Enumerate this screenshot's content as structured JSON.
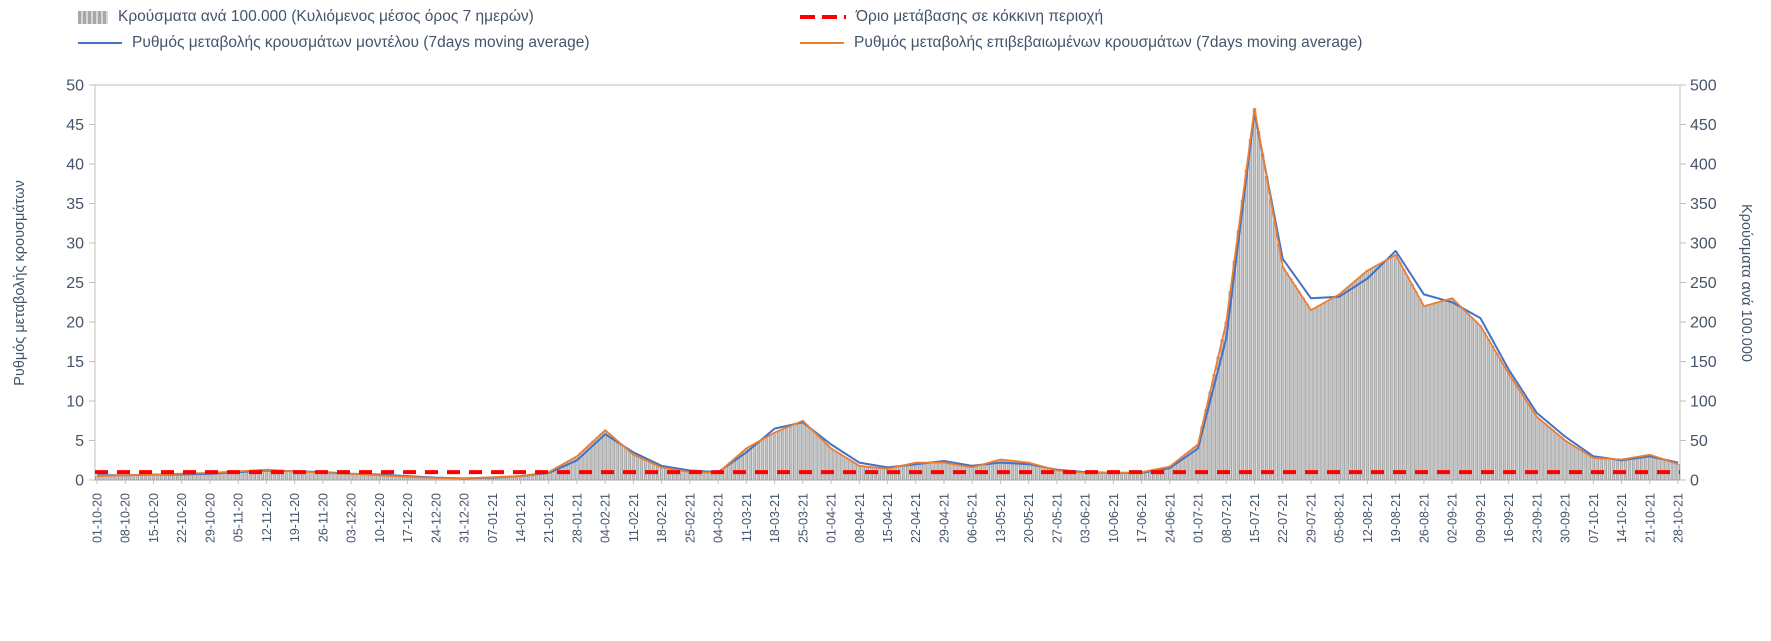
{
  "legend": {
    "bars": "Κρούσματα ανά 100.000 (Κυλιόμενος μέσος όρος 7 ημερών)",
    "threshold": "Όριο μετάβασης σε κόκκινη περιοχή",
    "model": "Ρυθμός μεταβολής κρουσμάτων μοντέλου (7days moving average)",
    "confirmed": "Ρυθμός μεταβολής επιβεβαιωμένων κρουσμάτων (7days moving average)"
  },
  "chart_data": {
    "type": "bar+line",
    "ylabel_left": "Ρυθμός μεταβολής κρουσμάτων",
    "ylabel_right": "Κρούσματα ανά 100.000",
    "ylim_left": [
      0,
      50
    ],
    "ylim_right": [
      0,
      500
    ],
    "yticks_left": [
      0,
      5,
      10,
      15,
      20,
      25,
      30,
      35,
      40,
      45,
      50
    ],
    "yticks_right": [
      0,
      50,
      100,
      150,
      200,
      250,
      300,
      350,
      400,
      450,
      500
    ],
    "grid": "off",
    "legend_position": "top",
    "threshold": {
      "label": "Όριο μετάβασης σε κόκκινη περιοχή",
      "value_left": 1,
      "value_right": 10
    },
    "categories": [
      "01-10-20",
      "08-10-20",
      "15-10-20",
      "22-10-20",
      "29-10-20",
      "05-11-20",
      "12-11-20",
      "19-11-20",
      "26-11-20",
      "03-12-20",
      "10-12-20",
      "17-12-20",
      "24-12-20",
      "31-12-20",
      "07-01-21",
      "14-01-21",
      "21-01-21",
      "28-01-21",
      "04-02-21",
      "11-02-21",
      "18-02-21",
      "25-02-21",
      "04-03-21",
      "11-03-21",
      "18-03-21",
      "25-03-21",
      "01-04-21",
      "08-04-21",
      "15-04-21",
      "22-04-21",
      "29-04-21",
      "06-05-21",
      "13-05-21",
      "20-05-21",
      "27-05-21",
      "03-06-21",
      "10-06-21",
      "17-06-21",
      "24-06-21",
      "01-07-21",
      "08-07-21",
      "15-07-21",
      "22-07-21",
      "29-07-21",
      "05-08-21",
      "12-08-21",
      "19-08-21",
      "26-08-21",
      "02-09-21",
      "09-09-21",
      "16-09-21",
      "23-09-21",
      "30-09-21",
      "07-10-21",
      "14-10-21",
      "21-10-21",
      "28-10-21"
    ],
    "series": [
      {
        "name": "Κρούσματα ανά 100.000 (Κυλιόμενος μέσος όρος 7 ημερών)",
        "role": "bars",
        "type": "bar",
        "axis": "right",
        "values": [
          5,
          6,
          7,
          8,
          9,
          11,
          13,
          11,
          9,
          8,
          6,
          4,
          2.5,
          2,
          3.5,
          5,
          10,
          30,
          63,
          32,
          16,
          10,
          9,
          40,
          60,
          75,
          40,
          18,
          14,
          22,
          22,
          16,
          26,
          22,
          12,
          9,
          9,
          10,
          17,
          45,
          200,
          470,
          270,
          215,
          235,
          265,
          285,
          220,
          230,
          195,
          135,
          80,
          50,
          28,
          26,
          32,
          20
        ]
      },
      {
        "name": "Ρυθμός μεταβολής κρουσμάτων μοντέλου (7days moving average)",
        "role": "model",
        "type": "line",
        "axis": "left",
        "values": [
          0.6,
          0.6,
          0.7,
          0.7,
          0.8,
          1.0,
          1.2,
          1.1,
          1.0,
          0.8,
          0.7,
          0.5,
          0.3,
          0.2,
          0.3,
          0.5,
          0.9,
          2.5,
          5.8,
          3.5,
          1.8,
          1.2,
          1.0,
          3.5,
          6.5,
          7.3,
          4.5,
          2.2,
          1.6,
          2.0,
          2.4,
          1.8,
          2.2,
          2.0,
          1.3,
          1.0,
          0.9,
          0.9,
          1.5,
          4.0,
          18.0,
          46.5,
          28.0,
          23.0,
          23.2,
          25.5,
          29.0,
          23.5,
          22.5,
          20.5,
          14.0,
          8.5,
          5.5,
          3.0,
          2.5,
          3.0,
          2.2
        ]
      },
      {
        "name": "Ρυθμός μεταβολής επιβεβαιωμένων κρουσμάτων (7days moving average)",
        "role": "confirmed",
        "type": "line",
        "axis": "left",
        "values": [
          0.5,
          0.6,
          0.7,
          0.8,
          0.9,
          1.1,
          1.3,
          1.1,
          0.9,
          0.8,
          0.6,
          0.4,
          0.25,
          0.2,
          0.35,
          0.5,
          1.0,
          3.0,
          6.3,
          3.2,
          1.6,
          1.0,
          0.9,
          4.0,
          6.0,
          7.5,
          4.0,
          1.8,
          1.4,
          2.2,
          2.2,
          1.6,
          2.6,
          2.2,
          1.2,
          0.9,
          0.9,
          1.0,
          1.7,
          4.5,
          20.0,
          47.0,
          27.0,
          21.5,
          23.5,
          26.5,
          28.5,
          22.0,
          23.0,
          19.5,
          13.5,
          8.0,
          5.0,
          2.8,
          2.6,
          3.2,
          2.0
        ]
      }
    ],
    "colors": {
      "bars_fill": "#c6c6c6",
      "bars_stroke": "#8f8f8f",
      "model": "#4472c4",
      "confirmed": "#ed7d31",
      "threshold": "#ff0000",
      "axis": "#bfbfbf",
      "text": "#44546a"
    }
  }
}
